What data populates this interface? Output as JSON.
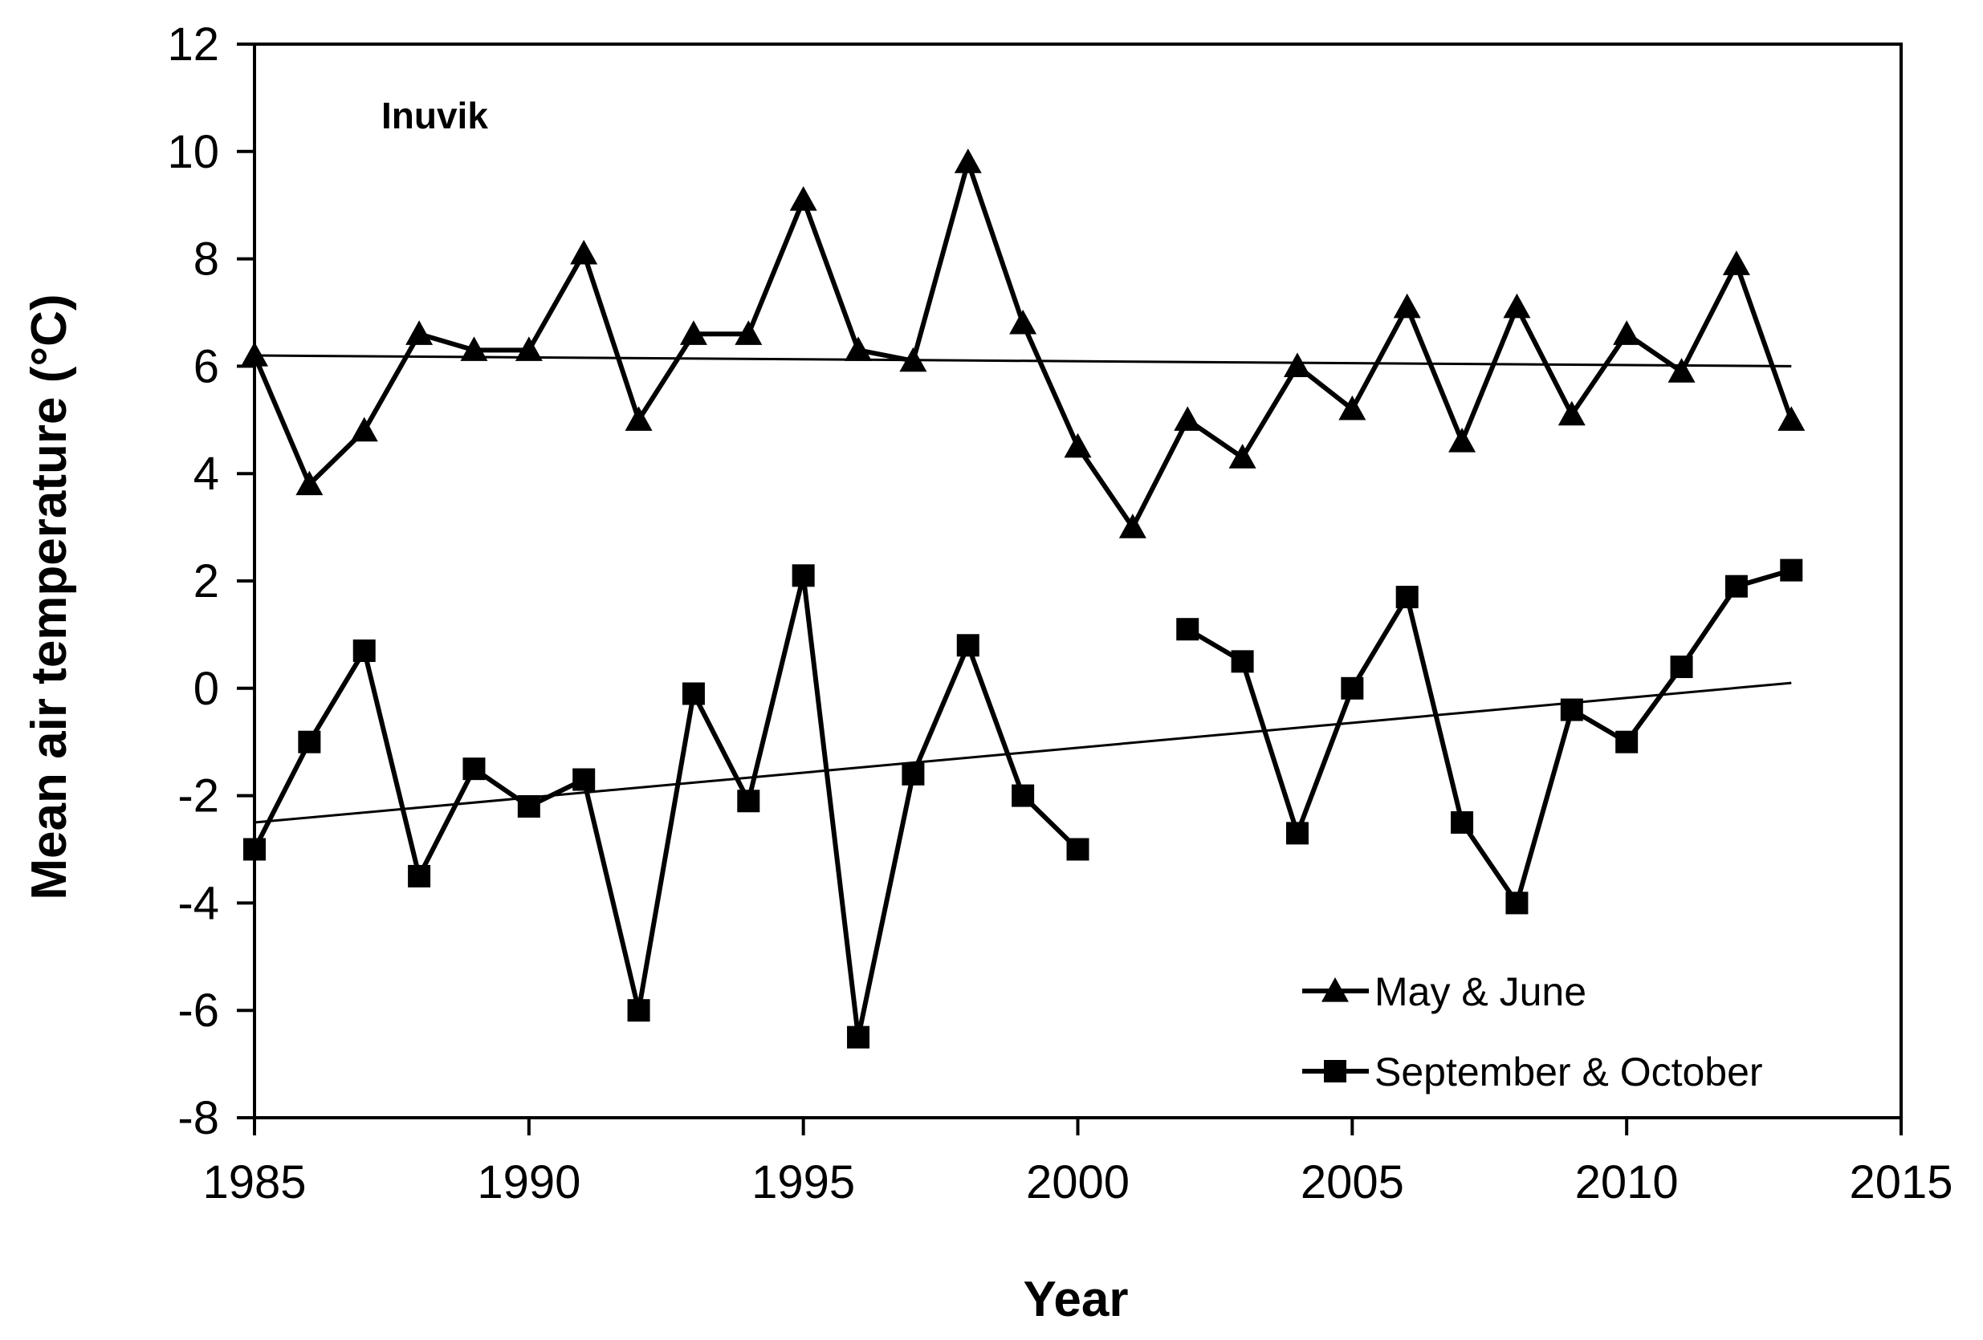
{
  "chart_data": {
    "type": "line",
    "title": "",
    "annotation": "Inuvik",
    "xlabel": "Year",
    "ylabel": "Mean air temperature (°C)",
    "xlim": [
      1985,
      2015
    ],
    "ylim": [
      -8,
      12
    ],
    "x_ticks": [
      "1985",
      "1990",
      "1995",
      "2000",
      "2005",
      "2010",
      "2015"
    ],
    "y_ticks": [
      "-8",
      "-6",
      "-4",
      "-2",
      "0",
      "2",
      "4",
      "6",
      "8",
      "10",
      "12"
    ],
    "grid": false,
    "legend_position": "bottom-right",
    "series": [
      {
        "name": "May & June",
        "marker": "triangle",
        "x": [
          1985,
          1986,
          1987,
          1988,
          1989,
          1990,
          1991,
          1992,
          1993,
          1994,
          1995,
          1996,
          1997,
          1998,
          1999,
          2000,
          2001,
          2002,
          2003,
          2004,
          2005,
          2006,
          2007,
          2008,
          2009,
          2010,
          2011,
          2012,
          2013
        ],
        "values": [
          6.2,
          3.8,
          4.8,
          6.6,
          6.3,
          6.3,
          8.1,
          5.0,
          6.6,
          6.6,
          9.1,
          6.3,
          6.1,
          9.8,
          6.8,
          4.5,
          3.0,
          5.0,
          4.3,
          6.0,
          5.2,
          7.1,
          4.6,
          7.1,
          5.1,
          6.6,
          5.9,
          7.9,
          5.0
        ],
        "trend": [
          6.2,
          6.0
        ]
      },
      {
        "name": "September & October",
        "marker": "square",
        "x": [
          1985,
          1986,
          1987,
          1988,
          1989,
          1990,
          1991,
          1992,
          1993,
          1994,
          1995,
          1996,
          1997,
          1998,
          1999,
          2000,
          2001,
          2002,
          2003,
          2004,
          2005,
          2006,
          2007,
          2008,
          2009,
          2010,
          2011,
          2012,
          2013
        ],
        "values": [
          -3.0,
          -1.0,
          0.7,
          -3.5,
          -1.5,
          -2.2,
          -1.7,
          -6.0,
          -0.1,
          -2.1,
          2.1,
          -6.5,
          -1.6,
          0.8,
          -2.0,
          -3.0,
          null,
          1.1,
          0.5,
          -2.7,
          0.0,
          1.7,
          -2.5,
          -4.0,
          -0.4,
          -1.0,
          0.4,
          1.9,
          2.2
        ],
        "trend": [
          -2.5,
          0.1
        ]
      }
    ]
  }
}
